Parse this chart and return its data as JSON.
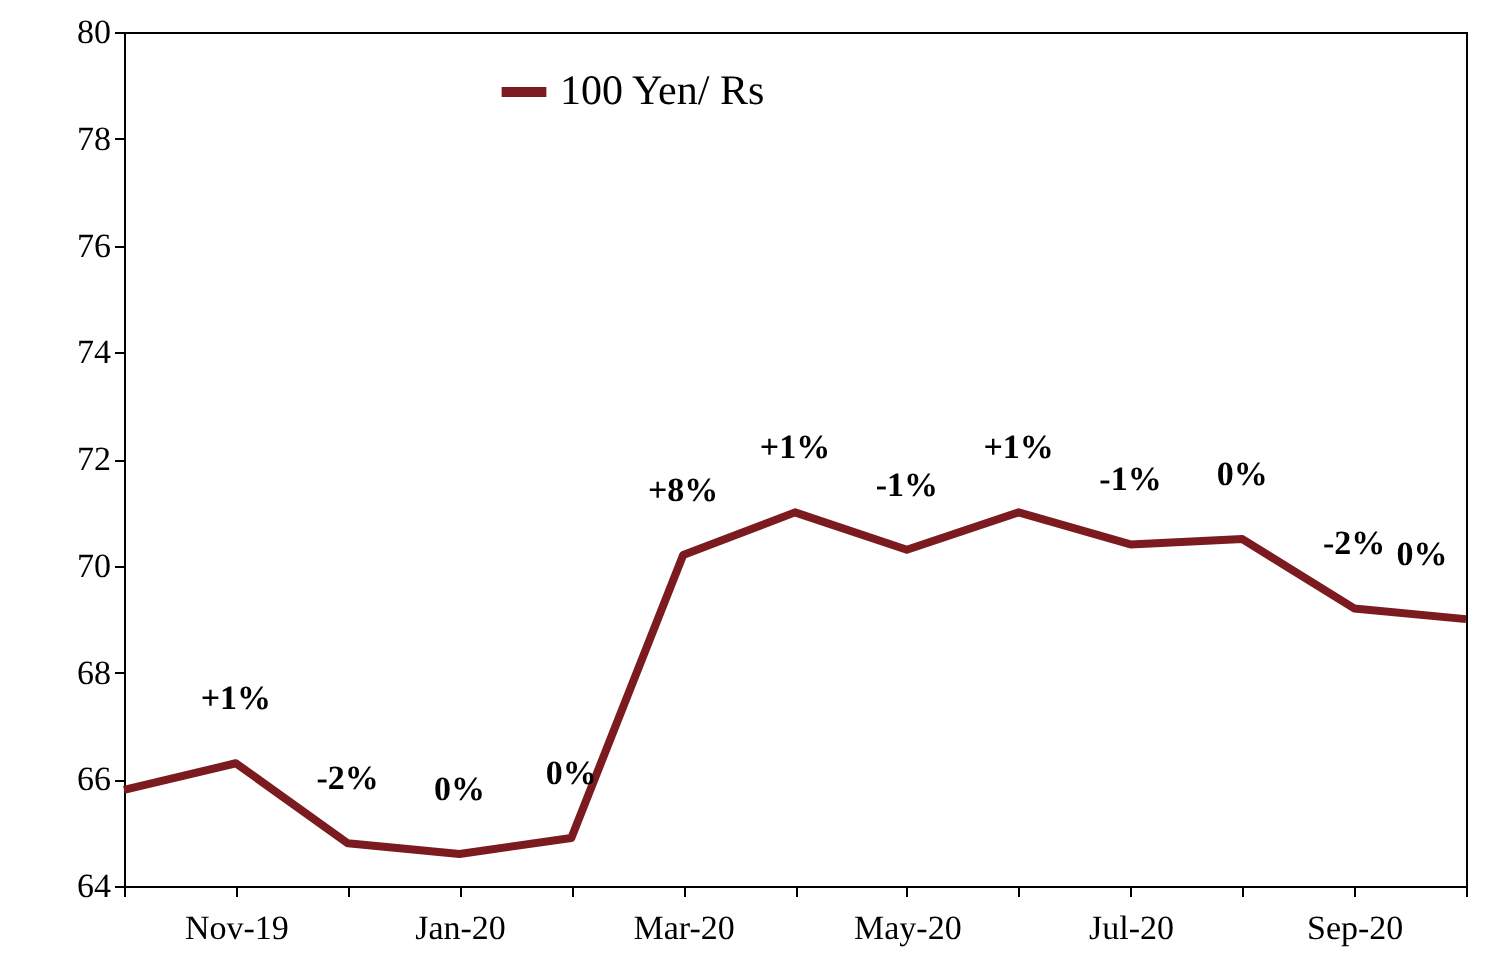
{
  "chart_data": {
    "type": "line",
    "categories": [
      null,
      "Nov-19",
      null,
      "Jan-20",
      null,
      "Mar-20",
      null,
      "May-20",
      null,
      "Jul-20",
      null,
      "Sep-20",
      null
    ],
    "series": [
      {
        "name": "100 Yen/ Rs",
        "color": "#7b1a1f",
        "values": [
          65.8,
          66.3,
          64.8,
          64.6,
          64.9,
          70.2,
          71.0,
          70.3,
          71.0,
          70.4,
          70.5,
          69.2,
          69.0
        ]
      }
    ],
    "ylim": [
      64,
      80
    ],
    "yticks": [
      64,
      66,
      68,
      70,
      72,
      74,
      76,
      78,
      80
    ],
    "grid": false,
    "legend": "top left",
    "marker": "none",
    "line_style": "solid",
    "annotations": [
      {
        "text": "+1%",
        "y": 66.3
      },
      {
        "text": "-2%",
        "y": 64.8
      },
      {
        "text": "0%",
        "y": 64.6
      },
      {
        "text": "0%",
        "y": 64.9
      },
      {
        "text": "+8%",
        "y": 70.2
      },
      {
        "text": "+1%",
        "y": 71.0
      },
      {
        "text": "-1%",
        "y": 70.3
      },
      {
        "text": "+1%",
        "y": 71.0
      },
      {
        "text": "-1%",
        "y": 70.4
      },
      {
        "text": "0%",
        "y": 70.5
      },
      {
        "text": "-2%",
        "y": 69.2
      },
      {
        "text": "0%",
        "y": 69.0
      }
    ]
  }
}
